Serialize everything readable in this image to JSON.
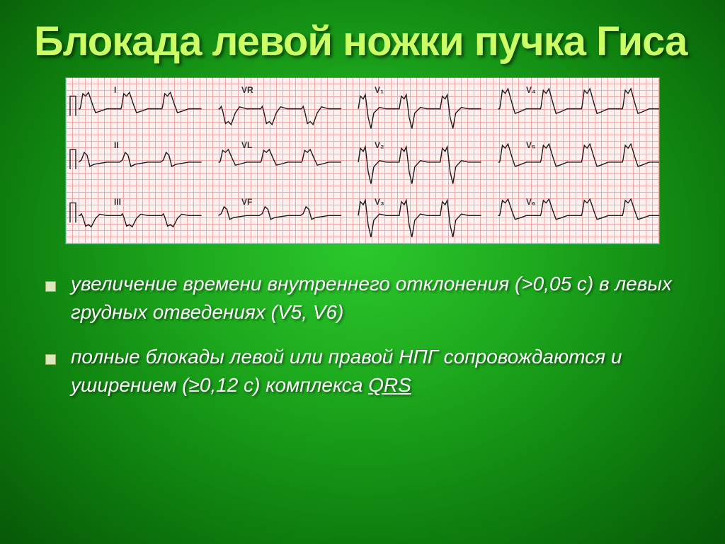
{
  "title": "Блокада левой ножки пучка Гиса",
  "leads": {
    "I": "I",
    "II": "II",
    "III": "III",
    "VR": "VR",
    "VL": "VL",
    "VF": "VF",
    "V1": "V₁",
    "V2": "V₂",
    "V3": "V₃",
    "V4": "V₄",
    "V5": "V₅",
    "V6": "V₆"
  },
  "bullets": [
    {
      "pre": "увеличение  времени внутреннего  отклонения  (>0,05 с) в  левых  грудных  отведениях (V5, V6)"
    },
    {
      "pre": "полные  блокады  левой  или  правой  НПГ  сопровождаются  и  уширением  (≥0,12 с) комплекса  ",
      "under": "QRS"
    }
  ],
  "ecg": {
    "background": "#fff0f0",
    "grid_minor": "#f0a8a8",
    "grid_major": "#e07070",
    "trace_color": "#1b1b1b",
    "trace_width": 1.4
  }
}
